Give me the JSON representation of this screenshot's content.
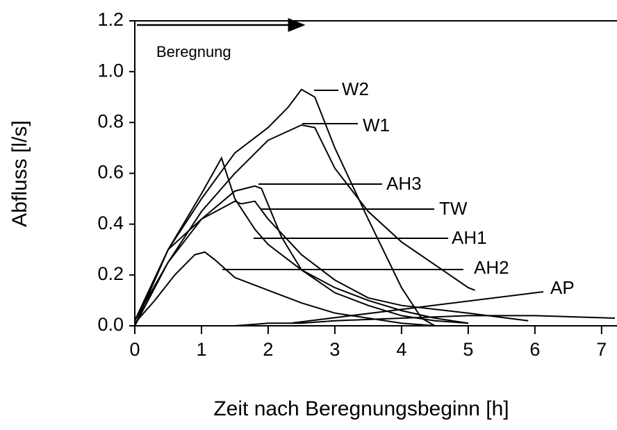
{
  "chart_data": {
    "type": "line",
    "xlabel": "Zeit nach Beregnungsbeginn [h]",
    "ylabel": "Abfluss [l/s]",
    "annotation": "Beregnung",
    "xlim": [
      0,
      7.2
    ],
    "ylim": [
      0,
      1.2
    ],
    "xticks": [
      0,
      1,
      2,
      3,
      4,
      5,
      6,
      7
    ],
    "yticks": [
      {
        "value": 0,
        "label": "0.0"
      },
      0.2,
      0.4,
      0.6,
      0.8,
      {
        "value": 1,
        "label": "1.0"
      },
      1.2
    ],
    "series": [
      {
        "name": "W2",
        "color": "#000000",
        "x": [
          0,
          0.5,
          1,
          1.5,
          2,
          2.3,
          2.5,
          2.7,
          3,
          3.5,
          4,
          4.3,
          4.5
        ],
        "values": [
          0,
          0.3,
          0.5,
          0.68,
          0.78,
          0.86,
          0.93,
          0.9,
          0.7,
          0.42,
          0.15,
          0.03,
          0
        ]
      },
      {
        "name": "W1",
        "color": "#000000",
        "x": [
          0,
          0.5,
          1,
          1.5,
          2,
          2.5,
          2.7,
          3,
          3.5,
          4,
          4.5,
          5,
          5.1
        ],
        "values": [
          0,
          0.25,
          0.45,
          0.6,
          0.73,
          0.79,
          0.78,
          0.62,
          0.45,
          0.33,
          0.24,
          0.15,
          0.14
        ]
      },
      {
        "name": "AH3",
        "color": "#000000",
        "x": [
          0,
          0.5,
          1,
          1.5,
          1.8,
          1.9,
          2.2,
          2.5,
          3,
          3.5,
          4,
          4.5,
          5
        ],
        "values": [
          0.02,
          0.25,
          0.42,
          0.53,
          0.55,
          0.54,
          0.35,
          0.22,
          0.13,
          0.08,
          0.04,
          0.02,
          0.01
        ]
      },
      {
        "name": "TW",
        "color": "#000000",
        "x": [
          0,
          0.5,
          1,
          1.5,
          1.6,
          1.8,
          2,
          2.5,
          3,
          3.5,
          4,
          5,
          5.9
        ],
        "values": [
          0.02,
          0.3,
          0.42,
          0.49,
          0.48,
          0.49,
          0.42,
          0.28,
          0.18,
          0.11,
          0.08,
          0.05,
          0.02
        ]
      },
      {
        "name": "AH1",
        "color": "#000000",
        "x": [
          0,
          0.5,
          1,
          1.3,
          1.5,
          1.8,
          2,
          2.5,
          3,
          3.5,
          4,
          4.5,
          5
        ],
        "values": [
          0.02,
          0.3,
          0.52,
          0.66,
          0.5,
          0.38,
          0.32,
          0.22,
          0.15,
          0.1,
          0.06,
          0.03,
          0.01
        ]
      },
      {
        "name": "AH2",
        "color": "#000000",
        "x": [
          0,
          0.3,
          0.6,
          0.9,
          1.05,
          1.2,
          1.5,
          2,
          2.5,
          3,
          3.5,
          4,
          4.5
        ],
        "values": [
          0.01,
          0.1,
          0.2,
          0.28,
          0.29,
          0.26,
          0.19,
          0.14,
          0.09,
          0.05,
          0.03,
          0.01,
          0
        ]
      },
      {
        "name": "AP",
        "color": "#000000",
        "x": [
          0,
          1.5,
          2,
          2.5,
          3,
          4,
          5,
          6,
          7.2
        ],
        "values": [
          0,
          0,
          0.01,
          0.01,
          0.02,
          0.03,
          0.04,
          0.04,
          0.03
        ]
      }
    ]
  }
}
